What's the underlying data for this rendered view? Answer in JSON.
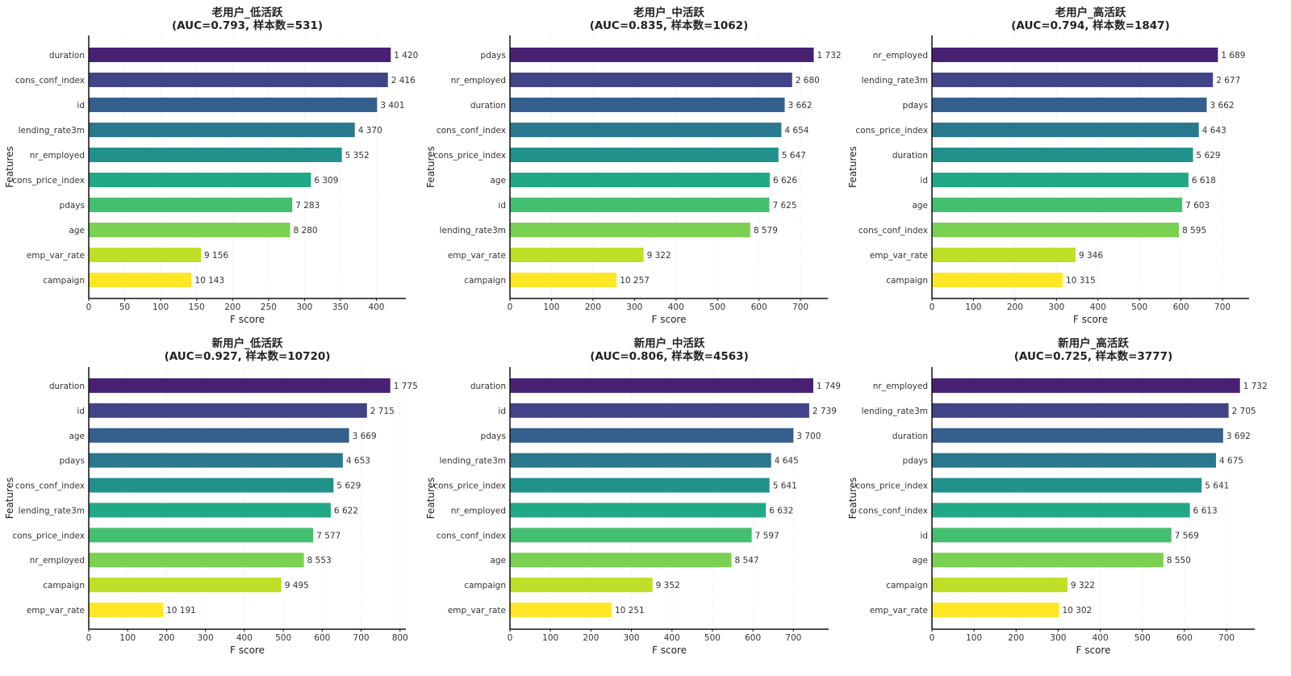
{
  "figure": {
    "description": "Feature importance (F score) grid by user segment"
  },
  "chart_data": [
    {
      "type": "bar",
      "orientation": "horizontal",
      "title": "老用户_低活跃",
      "subtitle": "(AUC=0.793, 样本数=531)",
      "xlabel": "F score",
      "ylabel": "Features",
      "xlim": [
        0,
        441
      ],
      "xticks": [
        0,
        50,
        100,
        150,
        200,
        250,
        300,
        350,
        400
      ],
      "grid": true,
      "categories": [
        "duration",
        "cons_conf_index",
        "id",
        "lending_rate3m",
        "nr_employed",
        "cons_price_index",
        "pdays",
        "age",
        "emp_var_rate",
        "campaign"
      ],
      "values": [
        420,
        416,
        401,
        370,
        352,
        309,
        283,
        280,
        156,
        143
      ],
      "labels": [
        "1 420",
        "2 416",
        "3 401",
        "4 370",
        "5 352",
        "6 309",
        "7 283",
        "8 280",
        "9 156",
        "10 143"
      ]
    },
    {
      "type": "bar",
      "orientation": "horizontal",
      "title": "老用户_中活跃",
      "subtitle": "(AUC=0.835, 样本数=1062)",
      "xlabel": "F score",
      "ylabel": "Features",
      "xlim": [
        0,
        766
      ],
      "xticks": [
        0,
        100,
        200,
        300,
        400,
        500,
        600,
        700
      ],
      "grid": true,
      "categories": [
        "pdays",
        "nr_employed",
        "duration",
        "cons_conf_index",
        "cons_price_index",
        "age",
        "id",
        "lending_rate3m",
        "emp_var_rate",
        "campaign"
      ],
      "values": [
        732,
        680,
        662,
        654,
        647,
        626,
        625,
        579,
        322,
        257
      ],
      "labels": [
        "1 732",
        "2 680",
        "3 662",
        "4 654",
        "5 647",
        "6 626",
        "7 625",
        "8 579",
        "9 322",
        "10 257"
      ]
    },
    {
      "type": "bar",
      "orientation": "horizontal",
      "title": "老用户_高活跃",
      "subtitle": "(AUC=0.794, 样本数=1847)",
      "xlabel": "F score",
      "ylabel": "Features",
      "xlim": [
        0,
        764
      ],
      "xticks": [
        0,
        100,
        200,
        300,
        400,
        500,
        600,
        700
      ],
      "grid": true,
      "categories": [
        "nr_employed",
        "lending_rate3m",
        "pdays",
        "cons_price_index",
        "duration",
        "id",
        "age",
        "cons_conf_index",
        "emp_var_rate",
        "campaign"
      ],
      "values": [
        689,
        677,
        662,
        643,
        629,
        618,
        603,
        595,
        346,
        315
      ],
      "labels": [
        "1 689",
        "2 677",
        "3 662",
        "4 643",
        "5 629",
        "6 618",
        "7 603",
        "8 595",
        "9 346",
        "10 315"
      ]
    },
    {
      "type": "bar",
      "orientation": "horizontal",
      "title": "新用户_低活跃",
      "subtitle": "(AUC=0.927, 样本数=10720)",
      "xlabel": "F score",
      "ylabel": "Features",
      "xlim": [
        0,
        815
      ],
      "xticks": [
        0,
        100,
        200,
        300,
        400,
        500,
        600,
        700,
        800
      ],
      "grid": true,
      "categories": [
        "duration",
        "id",
        "age",
        "pdays",
        "cons_conf_index",
        "lending_rate3m",
        "cons_price_index",
        "nr_employed",
        "campaign",
        "emp_var_rate"
      ],
      "values": [
        775,
        715,
        669,
        653,
        629,
        622,
        577,
        553,
        495,
        191
      ],
      "labels": [
        "1 775",
        "2 715",
        "3 669",
        "4 653",
        "5 629",
        "6 622",
        "7 577",
        "8 553",
        "9 495",
        "10 191"
      ]
    },
    {
      "type": "bar",
      "orientation": "horizontal",
      "title": "新用户_中活跃",
      "subtitle": "(AUC=0.806, 样本数=4563)",
      "xlabel": "F score",
      "ylabel": "Features",
      "xlim": [
        0,
        787
      ],
      "xticks": [
        0,
        100,
        200,
        300,
        400,
        500,
        600,
        700
      ],
      "grid": true,
      "categories": [
        "duration",
        "id",
        "pdays",
        "lending_rate3m",
        "cons_price_index",
        "nr_employed",
        "cons_conf_index",
        "age",
        "campaign",
        "emp_var_rate"
      ],
      "values": [
        749,
        739,
        700,
        645,
        641,
        632,
        597,
        547,
        352,
        251
      ],
      "labels": [
        "1 749",
        "2 739",
        "3 700",
        "4 645",
        "5 641",
        "6 632",
        "7 597",
        "8 547",
        "9 352",
        "10 251"
      ]
    },
    {
      "type": "bar",
      "orientation": "horizontal",
      "title": "新用户_高活跃",
      "subtitle": "(AUC=0.725, 样本数=3777)",
      "xlabel": "F score",
      "ylabel": "Features",
      "xlim": [
        0,
        767
      ],
      "xticks": [
        0,
        100,
        200,
        300,
        400,
        500,
        600,
        700
      ],
      "grid": true,
      "categories": [
        "nr_employed",
        "lending_rate3m",
        "duration",
        "pdays",
        "cons_price_index",
        "cons_conf_index",
        "id",
        "age",
        "campaign",
        "emp_var_rate"
      ],
      "values": [
        732,
        705,
        692,
        675,
        641,
        613,
        569,
        550,
        322,
        302
      ],
      "labels": [
        "1 732",
        "2 705",
        "3 692",
        "4 675",
        "5 641",
        "6 613",
        "7 569",
        "8 550",
        "9 322",
        "10 302"
      ]
    }
  ],
  "colors": {
    "palette": [
      "#482173",
      "#433e85",
      "#38598c",
      "#2d708e",
      "#25858e",
      "#1e9b8a",
      "#2ab07f",
      "#52c569",
      "#86d549",
      "#c2df23",
      "#fde725"
    ],
    "bar_sequence": [
      "#482173",
      "#414487",
      "#355f8d",
      "#2a788e",
      "#21918c",
      "#22a884",
      "#44bf70",
      "#7ad151",
      "#bddf26",
      "#fde725"
    ],
    "axis": "#111111",
    "grid": "#eeeeee"
  }
}
